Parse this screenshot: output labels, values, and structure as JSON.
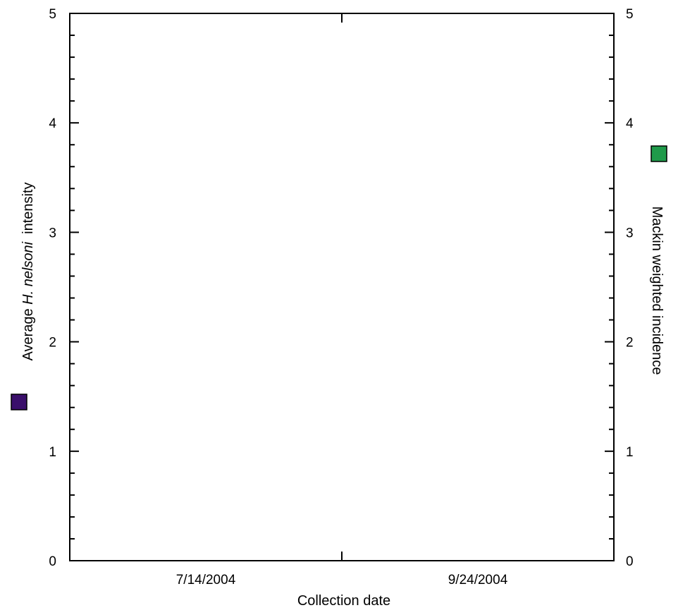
{
  "chart_data": {
    "type": "scatter",
    "title": "",
    "xlabel": "Collection date",
    "ylabel_left": {
      "prefix": "Average ",
      "italic": "H. nelsoni",
      "suffix": "  intensity"
    },
    "ylabel_right": "Mackin weighted incidence",
    "x_tick_labels": [
      "7/14/2004",
      "9/24/2004"
    ],
    "ylim_left": [
      0,
      5
    ],
    "ylim_right": [
      0,
      5
    ],
    "y_ticks_left": [
      "0",
      "1",
      "2",
      "3",
      "4",
      "5"
    ],
    "y_ticks_right": [
      "0",
      "1",
      "2",
      "3",
      "4",
      "5"
    ],
    "series": [
      {
        "name": "Average H. nelsoni intensity",
        "axis": "left",
        "marker": "square",
        "color": "#3a0f6b",
        "values": []
      },
      {
        "name": "Mackin weighted incidence",
        "axis": "right",
        "marker": "square",
        "color": "#1f9a4a",
        "values": []
      }
    ],
    "grid": false
  }
}
